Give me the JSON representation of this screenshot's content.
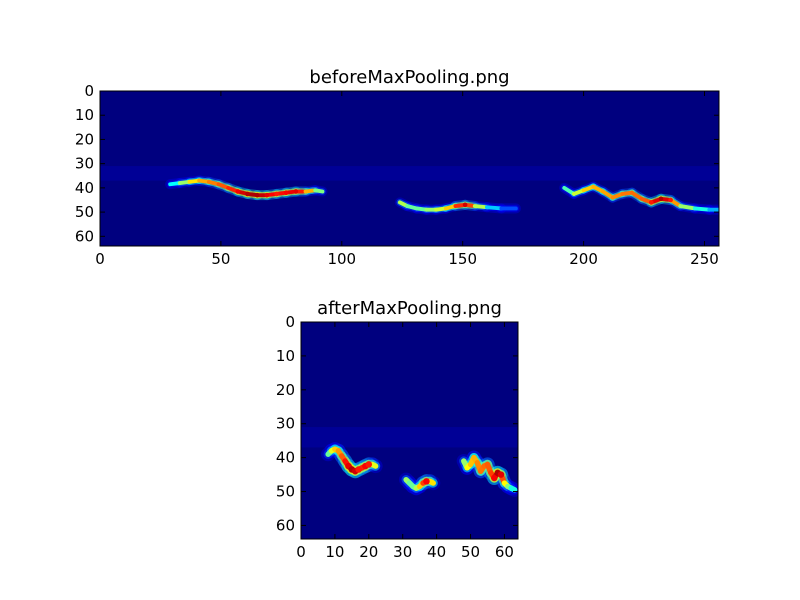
{
  "chart_data": [
    {
      "type": "heatmap",
      "title": "beforeMaxPooling.png",
      "xlabel": "",
      "ylabel": "",
      "xlim": [
        0,
        256
      ],
      "ylim": [
        64,
        0
      ],
      "xticks": [
        0,
        50,
        100,
        150,
        200,
        250
      ],
      "yticks": [
        0,
        10,
        20,
        30,
        40,
        50,
        60
      ],
      "colormap": "jet",
      "colormap_colors": [
        "#00007f",
        "#0000ff",
        "#007fff",
        "#00ffff",
        "#7fff7f",
        "#ffff00",
        "#ff7f00",
        "#ff0000",
        "#7f0000"
      ],
      "grid": false,
      "intensity_scale": "0 (background) to 1 (peak)",
      "strokes": [
        {
          "x": [
            29,
            33,
            37,
            41,
            45,
            49,
            53,
            57,
            61,
            65,
            69,
            73,
            77,
            81,
            85,
            89,
            92
          ],
          "y": [
            38.5,
            38,
            37.5,
            37,
            37.5,
            38.5,
            40,
            41.5,
            42.5,
            43,
            43,
            42.5,
            42,
            41.5,
            41.5,
            41,
            41.5
          ],
          "value": [
            0.3,
            0.45,
            0.6,
            0.7,
            0.72,
            0.78,
            0.8,
            0.88,
            0.95,
            0.96,
            0.9,
            0.85,
            0.88,
            0.9,
            0.8,
            0.6,
            0.4
          ]
        },
        {
          "x": [
            124,
            127,
            131,
            135,
            139,
            143,
            147,
            151,
            155,
            160,
            166,
            172
          ],
          "y": [
            46,
            47.5,
            48.5,
            49,
            49,
            48.5,
            47.5,
            47,
            47.5,
            48,
            48.5,
            48.5
          ],
          "value": [
            0.6,
            0.5,
            0.45,
            0.5,
            0.55,
            0.6,
            0.75,
            0.92,
            0.7,
            0.4,
            0.25,
            0.15
          ]
        },
        {
          "x": [
            192,
            196,
            200,
            204,
            208,
            212,
            216,
            220,
            224,
            228,
            232,
            236,
            240,
            246,
            252,
            256
          ],
          "y": [
            40,
            42.5,
            41,
            39.5,
            41.5,
            44,
            42.5,
            42,
            44.5,
            46,
            44.5,
            45,
            47.5,
            48.5,
            49,
            49
          ],
          "value": [
            0.35,
            0.55,
            0.6,
            0.75,
            0.65,
            0.78,
            0.7,
            0.82,
            0.72,
            0.85,
            0.95,
            0.85,
            0.6,
            0.45,
            0.35,
            0.25
          ]
        }
      ]
    },
    {
      "type": "heatmap",
      "title": "afterMaxPooling.png",
      "xlabel": "",
      "ylabel": "",
      "xlim": [
        0,
        64
      ],
      "ylim": [
        64,
        0
      ],
      "xticks": [
        0,
        10,
        20,
        30,
        40,
        50,
        60
      ],
      "yticks": [
        0,
        10,
        20,
        30,
        40,
        50,
        60
      ],
      "colormap": "jet",
      "colormap_colors": [
        "#00007f",
        "#0000ff",
        "#007fff",
        "#00ffff",
        "#7fff7f",
        "#ffff00",
        "#ff7f00",
        "#ff0000",
        "#7f0000"
      ],
      "grid": false,
      "intensity_scale": "0 (background) to 1 (peak)",
      "strokes": [
        {
          "x": [
            8,
            9,
            10,
            11,
            12,
            13,
            14,
            15,
            16,
            17,
            18,
            19,
            20,
            21,
            22
          ],
          "y": [
            39,
            38,
            37.5,
            38,
            39.5,
            41,
            42.5,
            43.5,
            44,
            43.5,
            43,
            42.5,
            42,
            42,
            42.5
          ],
          "value": [
            0.4,
            0.55,
            0.65,
            0.7,
            0.75,
            0.82,
            0.9,
            0.95,
            0.92,
            0.85,
            0.8,
            0.88,
            0.85,
            0.7,
            0.5
          ]
        },
        {
          "x": [
            31,
            32,
            33,
            34,
            35,
            36,
            37,
            38,
            39
          ],
          "y": [
            46.5,
            47.5,
            48.5,
            49,
            48.5,
            47.5,
            47,
            47,
            47.5
          ],
          "value": [
            0.55,
            0.5,
            0.45,
            0.5,
            0.6,
            0.75,
            0.88,
            0.8,
            0.5
          ]
        },
        {
          "x": [
            48,
            49,
            50,
            51,
            52,
            53,
            54,
            55,
            56,
            57,
            58,
            59,
            60,
            61,
            62,
            63
          ],
          "y": [
            41,
            43,
            42,
            40,
            41.5,
            44,
            42.5,
            42,
            44.5,
            46,
            44.5,
            45,
            47.5,
            48.5,
            49,
            49.5
          ],
          "value": [
            0.45,
            0.6,
            0.65,
            0.72,
            0.68,
            0.8,
            0.72,
            0.82,
            0.75,
            0.88,
            0.95,
            0.9,
            0.7,
            0.55,
            0.45,
            0.35
          ]
        }
      ]
    }
  ]
}
